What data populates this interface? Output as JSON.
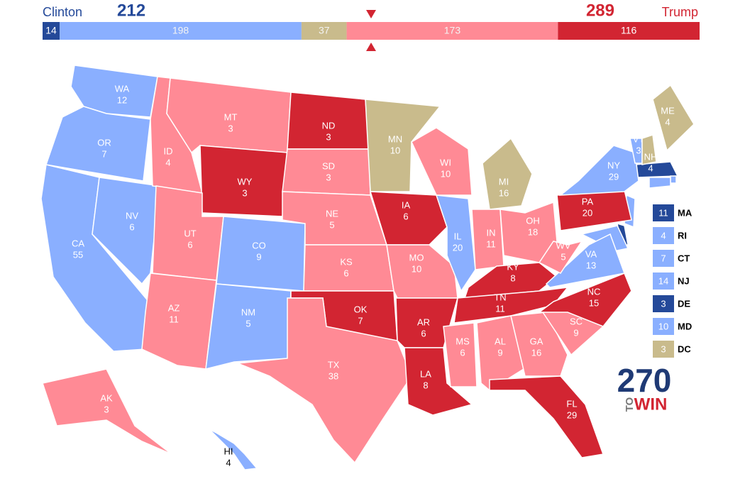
{
  "header": {
    "left_name": "Clinton",
    "left_total": 212,
    "right_name": "Trump",
    "right_total": 289,
    "segments": [
      {
        "value": 14,
        "rating": "safe-d"
      },
      {
        "value": 198,
        "rating": "lean-d"
      },
      {
        "value": 37,
        "rating": "tossup"
      },
      {
        "value": 173,
        "rating": "lean-r"
      },
      {
        "value": 116,
        "rating": "safe-r"
      }
    ]
  },
  "colors": {
    "safe-d": "#244999",
    "lean-d": "#8aafff",
    "tossup": "#c9bb8c",
    "lean-r": "#ff8a95",
    "safe-r": "#d22532"
  },
  "states": [
    {
      "abbr": "WA",
      "ev": 12,
      "rating": "lean-d"
    },
    {
      "abbr": "OR",
      "ev": 7,
      "rating": "lean-d"
    },
    {
      "abbr": "CA",
      "ev": 55,
      "rating": "lean-d"
    },
    {
      "abbr": "NV",
      "ev": 6,
      "rating": "lean-d"
    },
    {
      "abbr": "ID",
      "ev": 4,
      "rating": "lean-r"
    },
    {
      "abbr": "MT",
      "ev": 3,
      "rating": "lean-r"
    },
    {
      "abbr": "WY",
      "ev": 3,
      "rating": "safe-r"
    },
    {
      "abbr": "UT",
      "ev": 6,
      "rating": "lean-r"
    },
    {
      "abbr": "AZ",
      "ev": 11,
      "rating": "lean-r"
    },
    {
      "abbr": "CO",
      "ev": 9,
      "rating": "lean-d"
    },
    {
      "abbr": "NM",
      "ev": 5,
      "rating": "lean-d"
    },
    {
      "abbr": "ND",
      "ev": 3,
      "rating": "safe-r"
    },
    {
      "abbr": "SD",
      "ev": 3,
      "rating": "lean-r"
    },
    {
      "abbr": "NE",
      "ev": 5,
      "rating": "lean-r"
    },
    {
      "abbr": "KS",
      "ev": 6,
      "rating": "lean-r"
    },
    {
      "abbr": "OK",
      "ev": 7,
      "rating": "safe-r"
    },
    {
      "abbr": "TX",
      "ev": 38,
      "rating": "lean-r"
    },
    {
      "abbr": "MN",
      "ev": 10,
      "rating": "tossup"
    },
    {
      "abbr": "IA",
      "ev": 6,
      "rating": "safe-r"
    },
    {
      "abbr": "MO",
      "ev": 10,
      "rating": "lean-r"
    },
    {
      "abbr": "AR",
      "ev": 6,
      "rating": "safe-r"
    },
    {
      "abbr": "LA",
      "ev": 8,
      "rating": "safe-r"
    },
    {
      "abbr": "WI",
      "ev": 10,
      "rating": "lean-r"
    },
    {
      "abbr": "IL",
      "ev": 20,
      "rating": "lean-d"
    },
    {
      "abbr": "MI",
      "ev": 16,
      "rating": "tossup"
    },
    {
      "abbr": "IN",
      "ev": 11,
      "rating": "lean-r"
    },
    {
      "abbr": "OH",
      "ev": 18,
      "rating": "lean-r"
    },
    {
      "abbr": "KY",
      "ev": 8,
      "rating": "safe-r"
    },
    {
      "abbr": "TN",
      "ev": 11,
      "rating": "safe-r"
    },
    {
      "abbr": "MS",
      "ev": 6,
      "rating": "lean-r"
    },
    {
      "abbr": "AL",
      "ev": 9,
      "rating": "lean-r"
    },
    {
      "abbr": "GA",
      "ev": 16,
      "rating": "lean-r"
    },
    {
      "abbr": "FL",
      "ev": 29,
      "rating": "safe-r"
    },
    {
      "abbr": "SC",
      "ev": 9,
      "rating": "lean-r"
    },
    {
      "abbr": "NC",
      "ev": 15,
      "rating": "safe-r"
    },
    {
      "abbr": "VA",
      "ev": 13,
      "rating": "lean-d"
    },
    {
      "abbr": "WV",
      "ev": 5,
      "rating": "lean-r"
    },
    {
      "abbr": "PA",
      "ev": 20,
      "rating": "safe-r"
    },
    {
      "abbr": "NY",
      "ev": 29,
      "rating": "lean-d"
    },
    {
      "abbr": "ME",
      "ev": 4,
      "rating": "tossup"
    },
    {
      "abbr": "VT",
      "ev": 3,
      "rating": "lean-d"
    },
    {
      "abbr": "NH",
      "ev": 4,
      "rating": "tossup"
    },
    {
      "abbr": "AK",
      "ev": 3,
      "rating": "lean-r"
    },
    {
      "abbr": "HI",
      "ev": 4,
      "rating": "lean-d"
    }
  ],
  "legend_states": [
    {
      "abbr": "MA",
      "ev": 11,
      "rating": "safe-d"
    },
    {
      "abbr": "RI",
      "ev": 4,
      "rating": "lean-d"
    },
    {
      "abbr": "CT",
      "ev": 7,
      "rating": "lean-d"
    },
    {
      "abbr": "NJ",
      "ev": 14,
      "rating": "lean-d"
    },
    {
      "abbr": "DE",
      "ev": 3,
      "rating": "safe-d"
    },
    {
      "abbr": "MD",
      "ev": 10,
      "rating": "lean-d"
    },
    {
      "abbr": "DC",
      "ev": 3,
      "rating": "tossup"
    }
  ],
  "logo": {
    "number": "270",
    "to": "TO",
    "win": "WIN"
  }
}
